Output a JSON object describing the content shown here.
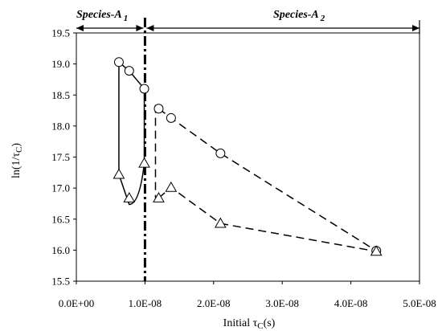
{
  "chart_data": {
    "type": "scatter",
    "xlabel": {
      "pre": "Initial τ",
      "sub": "C",
      "post": "(s)"
    },
    "ylabel": {
      "pre": "ln(1/τ",
      "sub": "C",
      "post": ")"
    },
    "xlim": [
      0,
      5e-08
    ],
    "ylim": [
      15.5,
      19.5
    ],
    "xticks": [
      "0.0E+00",
      "1.0E-08",
      "2.0E-08",
      "3.0E-08",
      "4.0E-08",
      "5.0E-08"
    ],
    "yticks": [
      "15.5",
      "16.0",
      "16.5",
      "17.0",
      "17.5",
      "18.0",
      "18.5",
      "19.0",
      "19.5"
    ],
    "grid": false,
    "legend": "none",
    "regions": [
      {
        "label": {
          "pre": "Species-A",
          "sub": "1"
        },
        "x_range": [
          0,
          1e-08
        ]
      },
      {
        "label": {
          "pre": "Species-A",
          "sub": "2"
        },
        "x_range": [
          1e-08,
          5e-08
        ]
      }
    ],
    "boundary_x": 1e-08,
    "series": [
      {
        "marker": "circle",
        "x": [
          6.2e-09,
          7.7e-09,
          9.9e-09
        ],
        "y": [
          19.03,
          18.89,
          18.6
        ]
      },
      {
        "marker": "triangle",
        "x": [
          6.2e-09,
          7.7e-09,
          9.9e-09
        ],
        "y": [
          17.22,
          16.84,
          17.4
        ]
      },
      {
        "marker": "circle",
        "x": [
          1.2e-08,
          1.38e-08,
          2.1e-08,
          4.37e-08
        ],
        "y": [
          18.28,
          18.13,
          17.56,
          15.99
        ]
      },
      {
        "marker": "triangle",
        "x": [
          1.2e-08,
          1.38e-08,
          2.1e-08,
          4.37e-08
        ],
        "y": [
          16.84,
          17.01,
          16.43,
          15.98
        ]
      }
    ]
  }
}
